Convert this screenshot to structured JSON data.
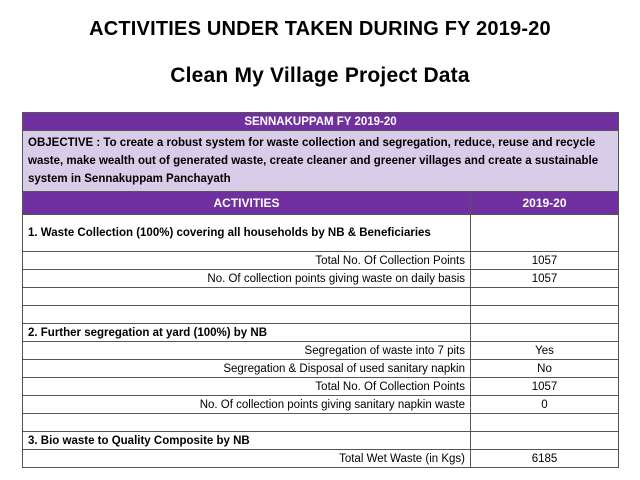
{
  "titles": {
    "main": "ACTIVITIES UNDER TAKEN DURING FY 2019-20",
    "sub": "Clean My Village Project Data"
  },
  "table": {
    "section_title": "SENNAKUPPAM FY 2019-20",
    "objective": "OBJECTIVE : To create a robust system for waste collection and segregation, reduce, reuse and recycle waste, make wealth out of generated waste, create cleaner and greener villages and create a sustainable system in Sennakuppam Panchayath",
    "col_activities": "ACTIVITIES",
    "col_year": "2019-20",
    "cat1": "1. Waste Collection (100%) covering all households by NB & Beneficiaries",
    "cat1_rows": [
      {
        "label": "Total No. Of Collection Points",
        "value": "1057"
      },
      {
        "label": "No. Of collection points giving waste on daily basis",
        "value": "1057"
      }
    ],
    "cat2": "2. Further segregation at yard (100%) by NB",
    "cat2_rows": [
      {
        "label": "Segregation of waste into 7 pits",
        "value": "Yes"
      },
      {
        "label": "Segregation & Disposal of used sanitary napkin",
        "value": "No"
      },
      {
        "label": "Total No. Of Collection Points",
        "value": "1057"
      },
      {
        "label": "No. Of collection points giving sanitary napkin waste",
        "value": "0"
      }
    ],
    "cat3": "3. Bio waste to Quality Composite by NB",
    "cat3_rows": [
      {
        "label": "Total Wet Waste (in Kgs)",
        "value": "6185"
      }
    ]
  }
}
